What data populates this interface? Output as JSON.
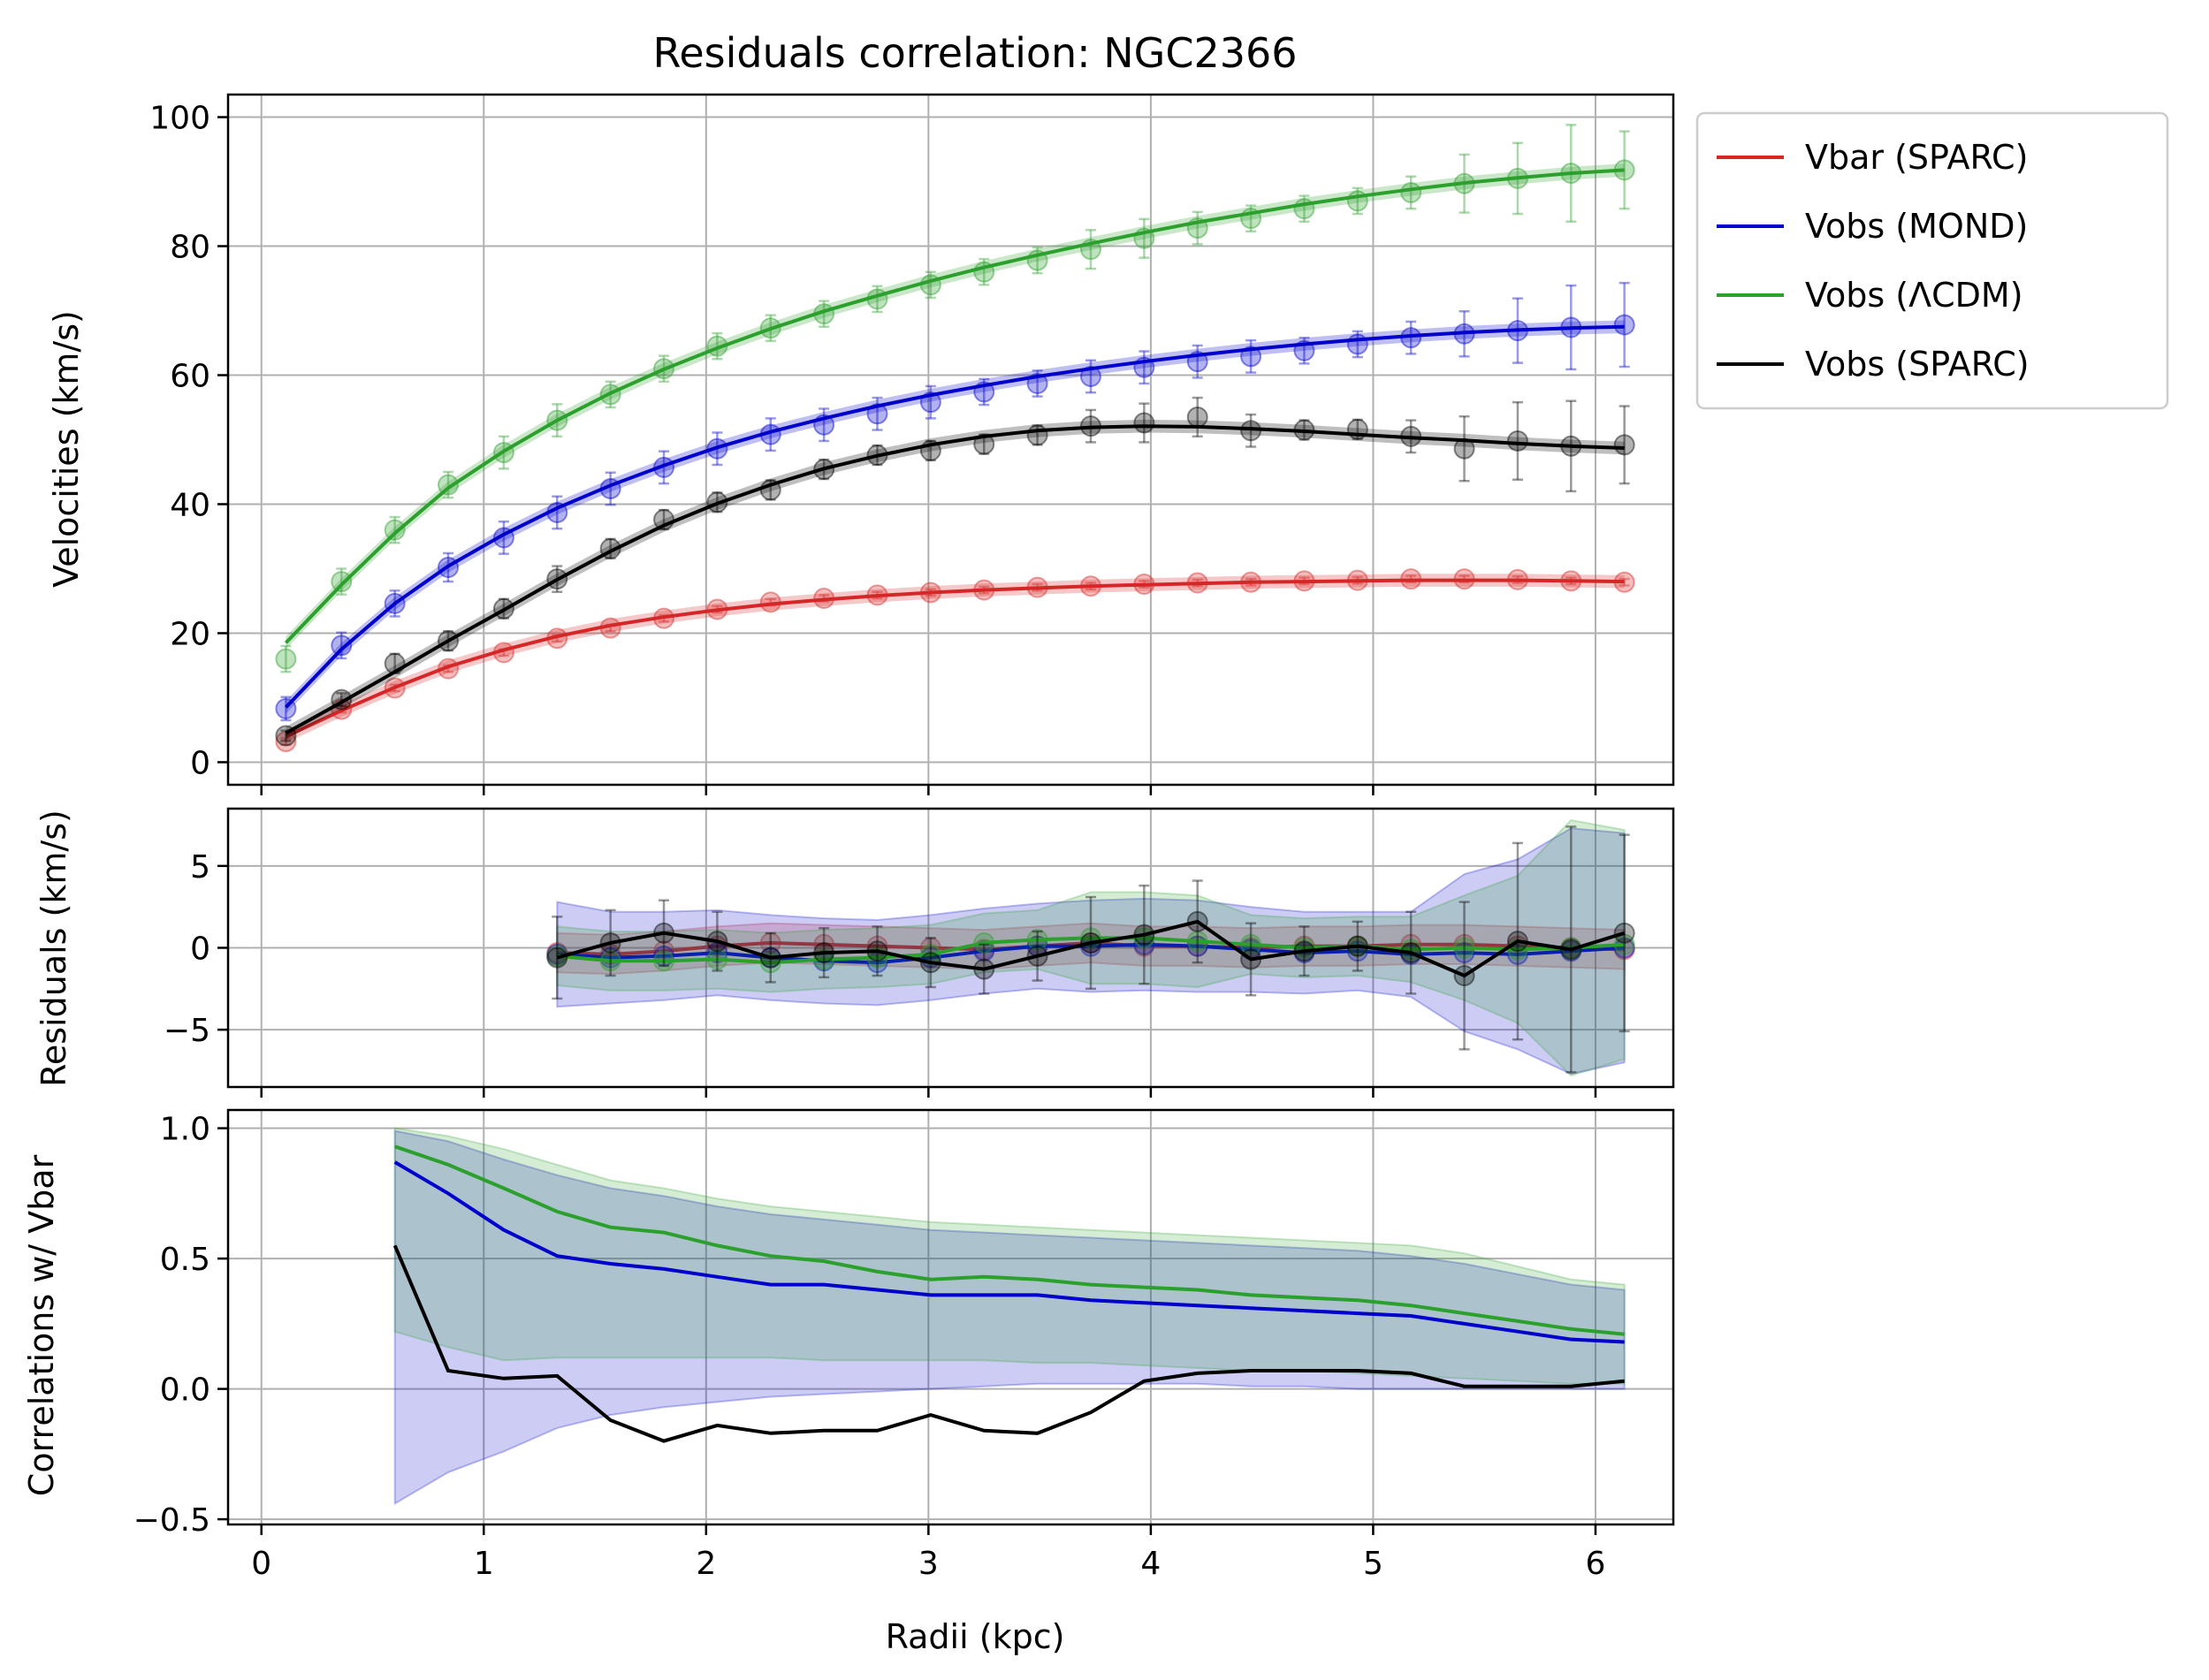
{
  "chart_data": [
    {
      "type": "line",
      "title": "Residuals correlation: NGC2366",
      "xlabel": "",
      "ylabel": "Velocities (km/s)",
      "xlim": [
        -0.15,
        6.35
      ],
      "ylim": [
        -3.5,
        103.5
      ],
      "xticks": [
        0,
        1,
        2,
        3,
        4,
        5,
        6
      ],
      "yticks": [
        0,
        20,
        40,
        60,
        80,
        100
      ],
      "grid": true,
      "x": [
        0.11,
        0.36,
        0.6,
        0.84,
        1.09,
        1.33,
        1.57,
        1.81,
        2.05,
        2.29,
        2.53,
        2.77,
        3.01,
        3.25,
        3.49,
        3.73,
        3.97,
        4.21,
        4.45,
        4.69,
        4.93,
        5.17,
        5.41,
        5.65,
        5.89,
        6.13
      ],
      "series": [
        {
          "name": "Vbar (SPARC)",
          "color": "#d62728",
          "values": [
            3.2,
            8.2,
            11.5,
            14.5,
            17,
            19.2,
            20.8,
            22.3,
            23.7,
            24.8,
            25.4,
            25.9,
            26.3,
            26.7,
            27.1,
            27.3,
            27.6,
            27.8,
            27.9,
            28.1,
            28.2,
            28.4,
            28.4,
            28.3,
            28.1,
            27.9
          ],
          "errors": [
            0.5,
            0.5,
            0.5,
            0.5,
            0.5,
            0.5,
            0.5,
            0.5,
            0.5,
            0.5,
            0.5,
            0.5,
            0.5,
            0.5,
            0.5,
            0.5,
            0.5,
            0.5,
            0.5,
            0.5,
            0.5,
            0.5,
            0.5,
            0.5,
            0.5,
            0.5
          ],
          "fit": [
            4,
            8,
            11.6,
            14.8,
            17.4,
            19.5,
            21.2,
            22.5,
            23.6,
            24.5,
            25.2,
            25.8,
            26.3,
            26.7,
            27,
            27.3,
            27.5,
            27.7,
            27.9,
            28,
            28.1,
            28.2,
            28.2,
            28.2,
            28.1,
            28
          ]
        },
        {
          "name": "Vobs (MOND)",
          "color": "#0000cc",
          "values": [
            8.3,
            18.1,
            24.6,
            30.2,
            34.8,
            38.7,
            42.4,
            45.7,
            48.6,
            50.8,
            52.3,
            54,
            55.8,
            57.4,
            58.7,
            59.8,
            61.2,
            62.1,
            62.9,
            63.8,
            64.8,
            65.8,
            66.4,
            66.9,
            67.4,
            67.8
          ],
          "errors": [
            1.8,
            2,
            2,
            2.2,
            2.5,
            2.5,
            2.5,
            2.5,
            2.5,
            2.5,
            2.5,
            2.5,
            2.5,
            2,
            2,
            2.5,
            2.5,
            2.5,
            2.5,
            2,
            2,
            2.5,
            3.5,
            5,
            6.5,
            6.5
          ],
          "fit": [
            8.5,
            17.5,
            24.6,
            30.4,
            35.3,
            39.4,
            42.9,
            46,
            48.8,
            51.2,
            53.3,
            55.2,
            56.9,
            58.4,
            59.8,
            61,
            62.1,
            63.1,
            64,
            64.8,
            65.5,
            66.1,
            66.6,
            67,
            67.3,
            67.5
          ]
        },
        {
          "name": "Vobs (ΛCDM)",
          "color": "#2ca02c",
          "values": [
            16,
            28,
            36,
            43,
            48,
            53,
            57,
            61,
            64.5,
            67.3,
            69.5,
            71.8,
            74,
            76,
            77.8,
            79.5,
            81.2,
            82.8,
            84.3,
            85.8,
            87,
            88.3,
            89.7,
            90.5,
            91.3,
            91.8
          ],
          "errors": [
            2,
            2,
            2,
            2,
            2.5,
            2.5,
            2,
            2,
            2,
            2,
            2,
            2,
            2,
            2,
            2,
            3,
            3,
            2.5,
            2,
            2,
            2,
            2.5,
            4.5,
            5.5,
            7.5,
            6
          ],
          "fit": [
            18.5,
            27.5,
            35.5,
            42.5,
            48.2,
            53,
            57.2,
            60.9,
            64.2,
            67.2,
            69.9,
            72.3,
            74.6,
            76.7,
            78.6,
            80.4,
            82.1,
            83.7,
            85.1,
            86.5,
            87.7,
            88.8,
            89.8,
            90.6,
            91.3,
            91.8
          ]
        },
        {
          "name": "Vobs (SPARC)",
          "color": "#000000",
          "values": [
            4.1,
            9.7,
            15.3,
            18.8,
            23.8,
            28.4,
            33.1,
            37.6,
            40.3,
            42.2,
            45.4,
            47.6,
            48.3,
            49.3,
            50.7,
            52.1,
            52.6,
            53.5,
            51.4,
            51.5,
            51.6,
            50.5,
            48.6,
            49.8,
            49,
            49.2
          ],
          "errors": [
            0.8,
            1,
            1.5,
            1.5,
            1.5,
            2,
            1.5,
            1.5,
            1.5,
            1.5,
            1.5,
            1.5,
            1.5,
            1.5,
            1.5,
            2.5,
            3,
            3,
            2.5,
            1.5,
            1.5,
            2.5,
            5,
            6,
            7,
            6
          ],
          "fit": [
            4.5,
            9.3,
            14,
            18.8,
            23.6,
            28.3,
            32.7,
            36.7,
            40.1,
            43,
            45.5,
            47.5,
            49.2,
            50.5,
            51.4,
            51.9,
            52.1,
            52,
            51.7,
            51.3,
            50.8,
            50.3,
            49.9,
            49.4,
            49,
            48.7
          ]
        }
      ],
      "legend": "outside-right"
    },
    {
      "type": "line",
      "title": "",
      "xlabel": "",
      "ylabel": "Residuals (km/s)",
      "xlim": [
        -0.15,
        6.35
      ],
      "ylim": [
        -8.5,
        8.5
      ],
      "yticks": [
        -5,
        0,
        5
      ],
      "grid": true,
      "x": [
        1.33,
        1.57,
        1.81,
        2.05,
        2.29,
        2.53,
        2.77,
        3.01,
        3.25,
        3.49,
        3.73,
        3.97,
        4.21,
        4.45,
        4.69,
        4.93,
        5.17,
        5.41,
        5.65,
        5.89,
        6.13
      ],
      "series": [
        {
          "name": "Vbar (SPARC)",
          "color": "#d62728",
          "values": [
            -0.3,
            -0.4,
            -0.2,
            0.1,
            0.3,
            0.2,
            0.1,
            0,
            -0.1,
            0.1,
            0.3,
            0.1,
            0.1,
            0,
            0.1,
            0.1,
            0.2,
            0.2,
            0.1,
            0,
            -0.1
          ],
          "band": [
            1.2,
            1.2,
            1.2,
            1.2,
            1.2,
            1.2,
            1.2,
            1.2,
            1.2,
            1.2,
            1.2,
            1.2,
            1.2,
            1.2,
            1.2,
            1.2,
            1.2,
            1.2,
            1.2,
            1.2,
            1.2
          ]
        },
        {
          "name": "Vobs (MOND)",
          "color": "#0000cc",
          "values": [
            -0.4,
            -0.6,
            -0.5,
            -0.3,
            -0.6,
            -0.8,
            -0.9,
            -0.6,
            -0.2,
            0.1,
            0.1,
            0.2,
            0.1,
            -0.1,
            -0.3,
            -0.2,
            -0.4,
            -0.3,
            -0.4,
            -0.2,
            0
          ],
          "band": [
            3.2,
            2.8,
            2.7,
            2.6,
            2.6,
            2.6,
            2.6,
            2.6,
            2.6,
            2.6,
            2.8,
            2.8,
            2.8,
            2.6,
            2.5,
            2.4,
            2.6,
            4.8,
            5.8,
            7.5,
            7
          ]
        },
        {
          "name": "Vobs (ΛCDM)",
          "color": "#2ca02c",
          "values": [
            -0.5,
            -0.8,
            -0.8,
            -0.7,
            -0.9,
            -0.7,
            -0.6,
            -0.4,
            0.3,
            0.5,
            0.6,
            0.6,
            0.4,
            0.2,
            0,
            0.1,
            -0.1,
            0,
            -0.1,
            0,
            0.2
          ],
          "band": [
            1.8,
            1.8,
            1.8,
            1.8,
            1.8,
            1.8,
            1.8,
            1.8,
            1.8,
            1.8,
            2.8,
            2.8,
            2.8,
            1.8,
            1.8,
            1.8,
            2,
            3.2,
            4.5,
            7.8,
            7
          ]
        },
        {
          "name": "Vobs (SPARC)",
          "color": "#000000",
          "values": [
            -0.6,
            0.3,
            0.9,
            0.4,
            -0.6,
            -0.3,
            -0.2,
            -0.9,
            -1.3,
            -0.5,
            0.3,
            0.8,
            1.6,
            -0.7,
            -0.2,
            0.1,
            -0.3,
            -1.7,
            0.4,
            -0.1,
            0.9
          ],
          "errors": [
            2.5,
            2,
            2,
            1.8,
            1.5,
            1.5,
            1.5,
            1.5,
            1.5,
            1.5,
            2.8,
            3,
            2.5,
            2.2,
            1.5,
            1.5,
            2.5,
            4.5,
            6,
            7.5,
            6
          ]
        }
      ],
      "legend": "none"
    },
    {
      "type": "line",
      "title": "",
      "xlabel": "Radii (kpc)",
      "ylabel": "Correlations w/ Vbar",
      "xlim": [
        -0.15,
        6.35
      ],
      "ylim": [
        -0.52,
        1.07
      ],
      "yticks": [
        -0.5,
        0.0,
        0.5,
        1.0
      ],
      "grid": true,
      "x": [
        0.6,
        0.84,
        1.09,
        1.33,
        1.57,
        1.81,
        2.05,
        2.29,
        2.53,
        2.77,
        3.01,
        3.25,
        3.49,
        3.73,
        3.97,
        4.21,
        4.45,
        4.69,
        4.93,
        5.17,
        5.41,
        5.65,
        5.89,
        6.13
      ],
      "series": [
        {
          "name": "Vobs (MOND)",
          "color": "#0000cc",
          "values": [
            0.87,
            0.75,
            0.61,
            0.51,
            0.48,
            0.46,
            0.43,
            0.4,
            0.4,
            0.38,
            0.36,
            0.36,
            0.36,
            0.34,
            0.33,
            0.32,
            0.31,
            0.3,
            0.29,
            0.28,
            0.25,
            0.22,
            0.19,
            0.18
          ],
          "band_lo": [
            -0.44,
            -0.32,
            -0.24,
            -0.15,
            -0.1,
            -0.07,
            -0.05,
            -0.03,
            -0.02,
            -0.01,
            0,
            0.01,
            0.02,
            0.02,
            0.02,
            0.02,
            0.01,
            0.01,
            0,
            0,
            0,
            0,
            0,
            0
          ],
          "band_hi": [
            0.99,
            0.95,
            0.88,
            0.82,
            0.77,
            0.74,
            0.7,
            0.67,
            0.65,
            0.63,
            0.61,
            0.6,
            0.59,
            0.58,
            0.57,
            0.56,
            0.55,
            0.54,
            0.53,
            0.51,
            0.48,
            0.44,
            0.4,
            0.38
          ]
        },
        {
          "name": "Vobs (ΛCDM)",
          "color": "#2ca02c",
          "values": [
            0.93,
            0.86,
            0.77,
            0.68,
            0.62,
            0.6,
            0.55,
            0.51,
            0.49,
            0.45,
            0.42,
            0.43,
            0.42,
            0.4,
            0.39,
            0.38,
            0.36,
            0.35,
            0.34,
            0.32,
            0.29,
            0.26,
            0.23,
            0.21
          ],
          "band_lo": [
            0.22,
            0.16,
            0.11,
            0.12,
            0.12,
            0.12,
            0.12,
            0.12,
            0.11,
            0.11,
            0.11,
            0.11,
            0.1,
            0.1,
            0.09,
            0.08,
            0.07,
            0.07,
            0.06,
            0.05,
            0.04,
            0.03,
            0.02,
            0.02
          ],
          "band_hi": [
            1.0,
            0.97,
            0.92,
            0.86,
            0.8,
            0.77,
            0.73,
            0.7,
            0.68,
            0.66,
            0.64,
            0.63,
            0.62,
            0.61,
            0.6,
            0.59,
            0.58,
            0.57,
            0.56,
            0.55,
            0.52,
            0.47,
            0.42,
            0.4
          ]
        },
        {
          "name": "Vobs (SPARC)",
          "color": "#000000",
          "values": [
            0.55,
            0.07,
            0.04,
            0.05,
            -0.12,
            -0.2,
            -0.14,
            -0.17,
            -0.16,
            -0.16,
            -0.1,
            -0.16,
            -0.17,
            -0.09,
            0.03,
            0.06,
            0.07,
            0.07,
            0.07,
            0.06,
            0.01,
            0.01,
            0.01,
            0.03
          ]
        }
      ],
      "legend": "none"
    }
  ]
}
